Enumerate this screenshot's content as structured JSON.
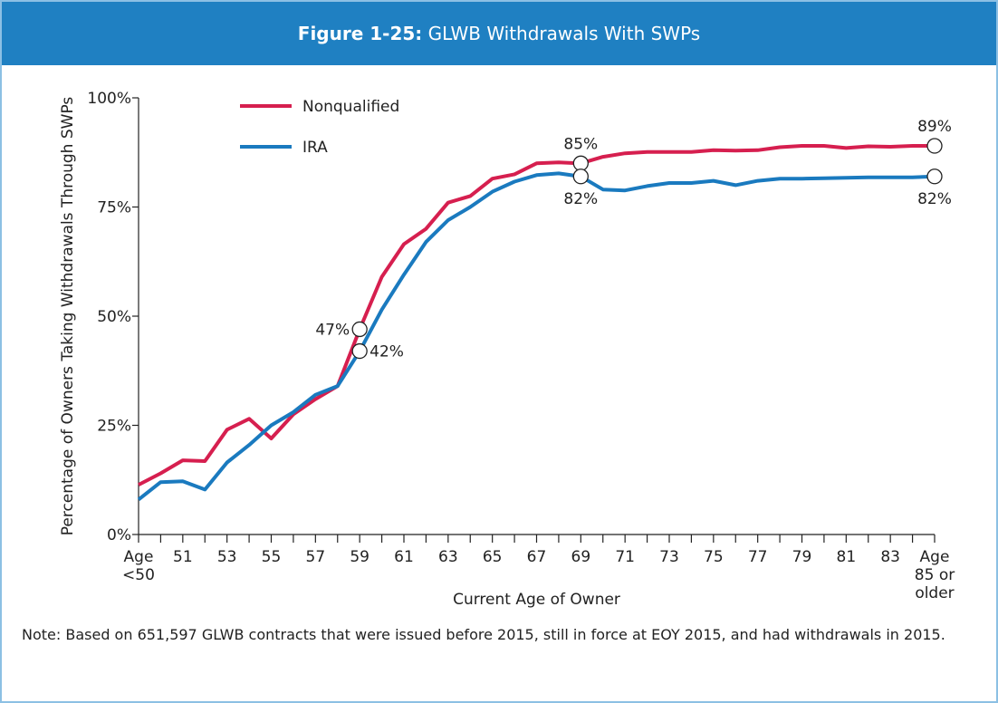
{
  "chart_data": {
    "type": "line",
    "title_label": "Figure 1-25:",
    "title": "GLWB Withdrawals With SWPs",
    "y_label": "Percentage of Owners Taking Withdrawals Through SWPs",
    "x_label": "Current Age of Owner",
    "note": "Note: Based on 651,597 GLWB contracts that were issued before 2015, still in force at EOY 2015, and had withdrawals in 2015.",
    "categories": [
      "Age\n<50",
      null,
      "51",
      null,
      "53",
      null,
      "55",
      null,
      "57",
      null,
      "59",
      null,
      "61",
      null,
      "63",
      null,
      "65",
      null,
      "67",
      null,
      "69",
      null,
      "71",
      null,
      "73",
      null,
      "75",
      null,
      "77",
      null,
      "79",
      null,
      "81",
      null,
      "83",
      null,
      "Age\n85 or\nolder"
    ],
    "ylim": [
      0,
      100
    ],
    "yticks": [
      {
        "value": 0,
        "label": "0%"
      },
      {
        "value": 25,
        "label": "25%"
      },
      {
        "value": 50,
        "label": "50%"
      },
      {
        "value": 75,
        "label": "75%"
      },
      {
        "value": 100,
        "label": "100%"
      }
    ],
    "series": [
      {
        "name": "Nonqualified",
        "color": "#d61f4f",
        "values": [
          11.4,
          14,
          17,
          16.8,
          24,
          26.5,
          22,
          27.5,
          31,
          34,
          47,
          59,
          66.5,
          70,
          76,
          77.5,
          81.5,
          82.5,
          85,
          85.2,
          85,
          86.5,
          87.3,
          87.6,
          87.6,
          87.6,
          88,
          87.9,
          88,
          88.7,
          89,
          89,
          88.5,
          88.9,
          88.8,
          89,
          89
        ],
        "value_labels": [
          null,
          null,
          null,
          null,
          null,
          null,
          null,
          null,
          null,
          null,
          "47%",
          null,
          null,
          null,
          null,
          null,
          null,
          null,
          null,
          null,
          "85%",
          null,
          null,
          null,
          null,
          null,
          null,
          null,
          null,
          null,
          null,
          null,
          null,
          null,
          null,
          null,
          "89%"
        ]
      },
      {
        "name": "IRA",
        "color": "#1a7abf",
        "values": [
          8,
          12,
          12.2,
          10.3,
          16.5,
          20.5,
          25,
          28,
          32,
          34,
          42,
          51.5,
          59.5,
          67,
          72,
          75,
          78.5,
          80.8,
          82.3,
          82.7,
          82,
          79,
          78.8,
          79.8,
          80.5,
          80.5,
          81,
          80,
          81,
          81.5,
          81.5,
          81.6,
          81.7,
          81.8,
          81.8,
          81.8,
          82
        ],
        "value_labels": [
          null,
          null,
          null,
          null,
          null,
          null,
          null,
          null,
          null,
          null,
          "42%",
          null,
          null,
          null,
          null,
          null,
          null,
          null,
          null,
          null,
          "82%",
          null,
          null,
          null,
          null,
          null,
          null,
          null,
          null,
          null,
          null,
          null,
          null,
          null,
          null,
          null,
          "82%"
        ]
      }
    ]
  }
}
